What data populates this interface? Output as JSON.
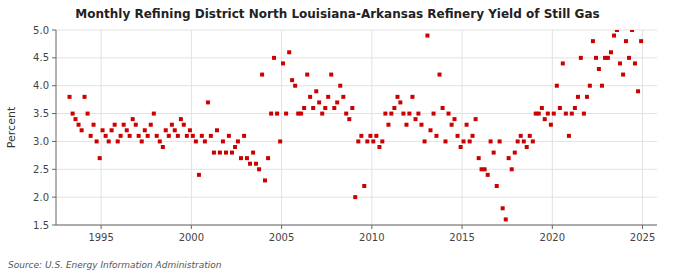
{
  "chart_data": {
    "type": "scatter",
    "title": "Monthly Refining District North Louisiana-Arkansas Refinery Yield of Still Gas",
    "ylabel": "Percent",
    "source": "Source: U.S. Energy Information Administration",
    "color": "#cc0000",
    "marker": "square",
    "grid": true,
    "xlim": [
      1992.5,
      2025.8
    ],
    "xticks": [
      1995,
      2000,
      2005,
      2010,
      2015,
      2020,
      2025
    ],
    "ylim": [
      1.5,
      5.0
    ],
    "yticks": [
      1.5,
      {
        "value": 2.0,
        "label": "2.0"
      },
      2.5,
      {
        "value": 3.0,
        "label": "3.0"
      },
      3.5,
      {
        "value": 4.0,
        "label": "4.0"
      },
      4.5,
      {
        "value": 5.0,
        "label": "5.0"
      }
    ],
    "x": [
      1993.25,
      1993.42,
      1993.58,
      1993.75,
      1993.92,
      1994.08,
      1994.25,
      1994.42,
      1994.58,
      1994.75,
      1994.92,
      1995.08,
      1995.25,
      1995.42,
      1995.58,
      1995.75,
      1995.92,
      1996.08,
      1996.25,
      1996.42,
      1996.58,
      1996.75,
      1996.92,
      1997.08,
      1997.25,
      1997.42,
      1997.58,
      1997.75,
      1997.92,
      1998.08,
      1998.25,
      1998.42,
      1998.58,
      1998.75,
      1998.92,
      1999.08,
      1999.25,
      1999.42,
      1999.58,
      1999.75,
      1999.92,
      2000.08,
      2000.25,
      2000.42,
      2000.58,
      2000.75,
      2000.92,
      2001.08,
      2001.25,
      2001.42,
      2001.58,
      2001.75,
      2001.92,
      2002.08,
      2002.25,
      2002.42,
      2002.58,
      2002.75,
      2002.92,
      2003.08,
      2003.25,
      2003.42,
      2003.58,
      2003.75,
      2003.92,
      2004.08,
      2004.25,
      2004.42,
      2004.58,
      2004.75,
      2004.92,
      2005.08,
      2005.25,
      2005.42,
      2005.58,
      2005.75,
      2005.92,
      2006.08,
      2006.25,
      2006.42,
      2006.58,
      2006.75,
      2006.92,
      2007.08,
      2007.25,
      2007.42,
      2007.58,
      2007.75,
      2007.92,
      2008.08,
      2008.25,
      2008.42,
      2008.58,
      2008.75,
      2008.92,
      2009.08,
      2009.25,
      2009.42,
      2009.58,
      2009.75,
      2009.92,
      2010.08,
      2010.25,
      2010.42,
      2010.58,
      2010.75,
      2010.92,
      2011.08,
      2011.25,
      2011.42,
      2011.58,
      2011.75,
      2011.92,
      2012.08,
      2012.25,
      2012.42,
      2012.58,
      2012.75,
      2012.92,
      2013.08,
      2013.25,
      2013.42,
      2013.58,
      2013.75,
      2013.92,
      2014.08,
      2014.25,
      2014.42,
      2014.58,
      2014.75,
      2014.92,
      2015.08,
      2015.25,
      2015.42,
      2015.58,
      2015.75,
      2015.92,
      2016.08,
      2016.25,
      2016.42,
      2016.58,
      2016.75,
      2016.92,
      2017.08,
      2017.25,
      2017.42,
      2017.58,
      2017.75,
      2017.92,
      2018.08,
      2018.25,
      2018.42,
      2018.58,
      2018.75,
      2018.92,
      2019.08,
      2019.25,
      2019.42,
      2019.58,
      2019.75,
      2019.92,
      2020.08,
      2020.25,
      2020.42,
      2020.58,
      2020.75,
      2020.92,
      2021.08,
      2021.25,
      2021.42,
      2021.58,
      2021.75,
      2021.92,
      2022.08,
      2022.25,
      2022.42,
      2022.58,
      2022.75,
      2022.92,
      2023.08,
      2023.25,
      2023.42,
      2023.58,
      2023.75,
      2023.92,
      2024.08,
      2024.25,
      2024.42,
      2024.58,
      2024.75,
      2024.92
    ],
    "values": [
      3.8,
      3.5,
      3.4,
      3.3,
      3.2,
      3.8,
      3.5,
      3.1,
      3.3,
      3.0,
      2.7,
      3.2,
      3.1,
      3.0,
      3.2,
      3.3,
      3.0,
      3.1,
      3.3,
      3.2,
      3.1,
      3.4,
      3.3,
      3.1,
      3.0,
      3.2,
      3.1,
      3.3,
      3.5,
      3.1,
      3.0,
      2.9,
      3.2,
      3.1,
      3.3,
      3.2,
      3.1,
      3.4,
      3.3,
      3.1,
      3.2,
      3.1,
      3.0,
      2.4,
      3.1,
      3.0,
      3.7,
      3.1,
      2.8,
      3.2,
      2.8,
      3.0,
      2.8,
      3.1,
      2.8,
      2.9,
      3.0,
      2.7,
      3.1,
      2.7,
      2.6,
      2.8,
      2.6,
      2.5,
      4.2,
      2.3,
      2.7,
      3.5,
      4.5,
      3.5,
      3.0,
      4.4,
      3.5,
      4.6,
      4.1,
      4.0,
      3.5,
      3.5,
      3.6,
      4.2,
      3.8,
      3.6,
      3.9,
      3.7,
      3.5,
      3.6,
      3.8,
      4.2,
      3.6,
      3.7,
      4.0,
      3.8,
      3.5,
      3.4,
      3.6,
      2.0,
      3.0,
      3.1,
      2.2,
      3.0,
      3.1,
      3.0,
      3.1,
      2.9,
      3.0,
      3.5,
      3.3,
      3.5,
      3.6,
      3.8,
      3.7,
      3.5,
      3.3,
      3.5,
      3.8,
      3.4,
      3.5,
      3.3,
      3.0,
      4.9,
      3.2,
      3.5,
      3.1,
      4.2,
      3.6,
      3.0,
      3.5,
      3.3,
      3.4,
      3.1,
      2.9,
      3.0,
      3.3,
      3.0,
      3.1,
      3.4,
      2.7,
      2.5,
      2.5,
      2.4,
      3.0,
      2.8,
      2.2,
      3.0,
      1.8,
      1.6,
      2.7,
      2.5,
      2.8,
      3.0,
      3.1,
      3.0,
      2.9,
      3.1,
      3.0,
      3.5,
      3.5,
      3.6,
      3.4,
      3.5,
      3.3,
      3.5,
      4.0,
      3.6,
      4.4,
      3.5,
      3.1,
      3.5,
      3.6,
      3.8,
      4.5,
      3.5,
      3.8,
      4.0,
      4.8,
      4.5,
      4.3,
      4.0,
      4.5,
      4.5,
      4.6,
      4.9,
      5.0,
      4.4,
      4.2,
      4.8,
      4.5,
      5.0,
      4.4,
      3.9,
      4.8
    ]
  }
}
